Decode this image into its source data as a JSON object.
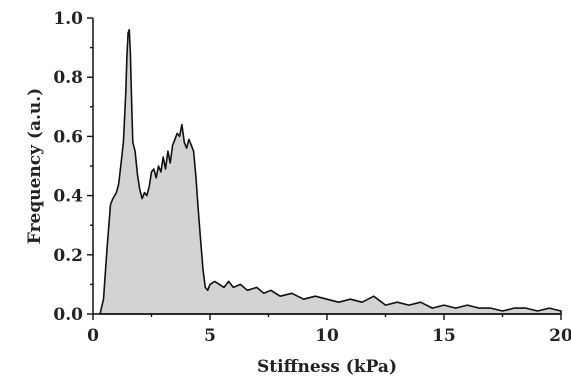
{
  "chart_data": {
    "type": "area",
    "title": "",
    "xlabel": "Stiffness (kPa)",
    "ylabel": "Frequency (a.u.)",
    "xlim": [
      0,
      20
    ],
    "ylim": [
      0,
      1.0
    ],
    "x_ticks": [
      "0",
      "5",
      "10",
      "15",
      "20"
    ],
    "y_ticks": [
      "0.0",
      "0.2",
      "0.4",
      "0.6",
      "0.8",
      "1.0"
    ],
    "grid": false,
    "fill_color": "#d3d3d3",
    "line_color": "#111111",
    "x": [
      0.3,
      0.45,
      0.6,
      0.75,
      0.85,
      1.0,
      1.1,
      1.2,
      1.3,
      1.4,
      1.45,
      1.5,
      1.55,
      1.6,
      1.65,
      1.7,
      1.8,
      1.9,
      2.0,
      2.1,
      2.2,
      2.3,
      2.4,
      2.5,
      2.6,
      2.7,
      2.8,
      2.9,
      3.0,
      3.1,
      3.2,
      3.3,
      3.4,
      3.5,
      3.6,
      3.7,
      3.8,
      3.9,
      4.0,
      4.1,
      4.2,
      4.3,
      4.4,
      4.5,
      4.6,
      4.7,
      4.8,
      4.9,
      5.0,
      5.2,
      5.4,
      5.6,
      5.8,
      6.0,
      6.3,
      6.6,
      7.0,
      7.3,
      7.6,
      8.0,
      8.5,
      9.0,
      9.5,
      10.0,
      10.5,
      11.0,
      11.5,
      12.0,
      12.5,
      13.0,
      13.5,
      14.0,
      14.5,
      15.0,
      15.5,
      16.0,
      16.5,
      17.0,
      17.5,
      18.0,
      18.5,
      19.0,
      19.5,
      20.0
    ],
    "y": [
      0.0,
      0.05,
      0.22,
      0.37,
      0.39,
      0.41,
      0.44,
      0.51,
      0.58,
      0.75,
      0.87,
      0.95,
      0.96,
      0.88,
      0.72,
      0.58,
      0.55,
      0.47,
      0.42,
      0.39,
      0.41,
      0.4,
      0.43,
      0.48,
      0.49,
      0.46,
      0.5,
      0.48,
      0.53,
      0.49,
      0.55,
      0.51,
      0.57,
      0.59,
      0.61,
      0.6,
      0.64,
      0.58,
      0.56,
      0.59,
      0.57,
      0.55,
      0.46,
      0.35,
      0.25,
      0.15,
      0.09,
      0.08,
      0.1,
      0.11,
      0.1,
      0.09,
      0.11,
      0.09,
      0.1,
      0.08,
      0.09,
      0.07,
      0.08,
      0.06,
      0.07,
      0.05,
      0.06,
      0.05,
      0.04,
      0.05,
      0.04,
      0.06,
      0.03,
      0.04,
      0.03,
      0.04,
      0.02,
      0.03,
      0.02,
      0.03,
      0.02,
      0.02,
      0.01,
      0.02,
      0.02,
      0.01,
      0.02,
      0.01
    ]
  }
}
